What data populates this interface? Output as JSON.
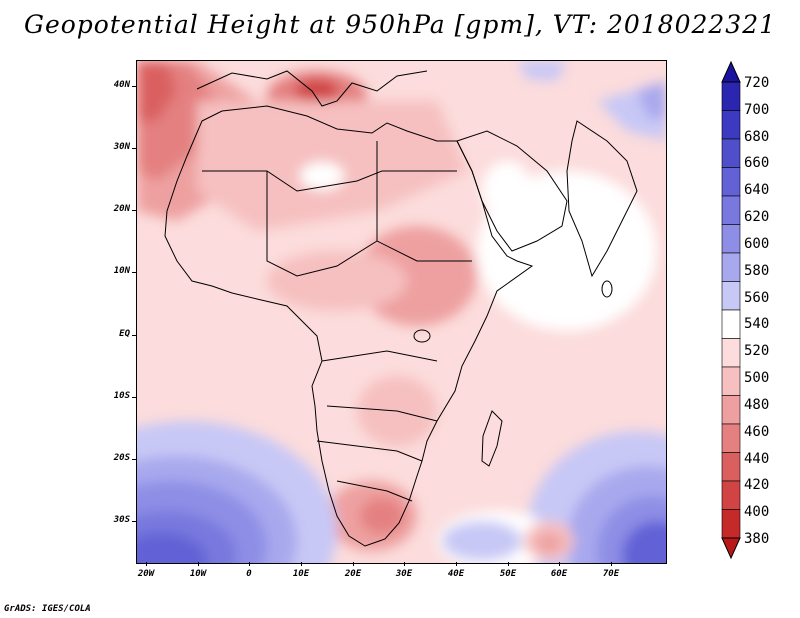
{
  "title": "Geopotential Height at 950hPa [gpm], VT: 2018022321",
  "variable": "Geopotential Height",
  "level": "950hPa",
  "units": "gpm",
  "valid_time": "2018022321",
  "axes": {
    "lat_labels": [
      "40N",
      "30N",
      "20N",
      "10N",
      "EQ",
      "10S",
      "20S",
      "30S"
    ],
    "lon_labels": [
      "20W",
      "10W",
      "0",
      "10E",
      "20E",
      "30E",
      "40E",
      "50E",
      "60E",
      "70E"
    ],
    "lat_range": [
      -37,
      44
    ],
    "lon_range": [
      -22,
      80
    ]
  },
  "colorbar": {
    "labels": [
      "720",
      "700",
      "680",
      "660",
      "640",
      "620",
      "600",
      "580",
      "560",
      "540",
      "520",
      "500",
      "480",
      "460",
      "440",
      "420",
      "400",
      "380"
    ],
    "colors": [
      "#1a12a0",
      "#2a26b0",
      "#3c3ac0",
      "#4f4fcc",
      "#6262d6",
      "#7878de",
      "#8e8ee6",
      "#a8a8ee",
      "#c8c8f6",
      "#ffffff",
      "#fcdcdc",
      "#f6c0c0",
      "#eea0a0",
      "#e48080",
      "#da6060",
      "#d04444",
      "#c42a2a",
      "#b81818"
    ]
  },
  "credit": "GrADS: IGES/COLA"
}
